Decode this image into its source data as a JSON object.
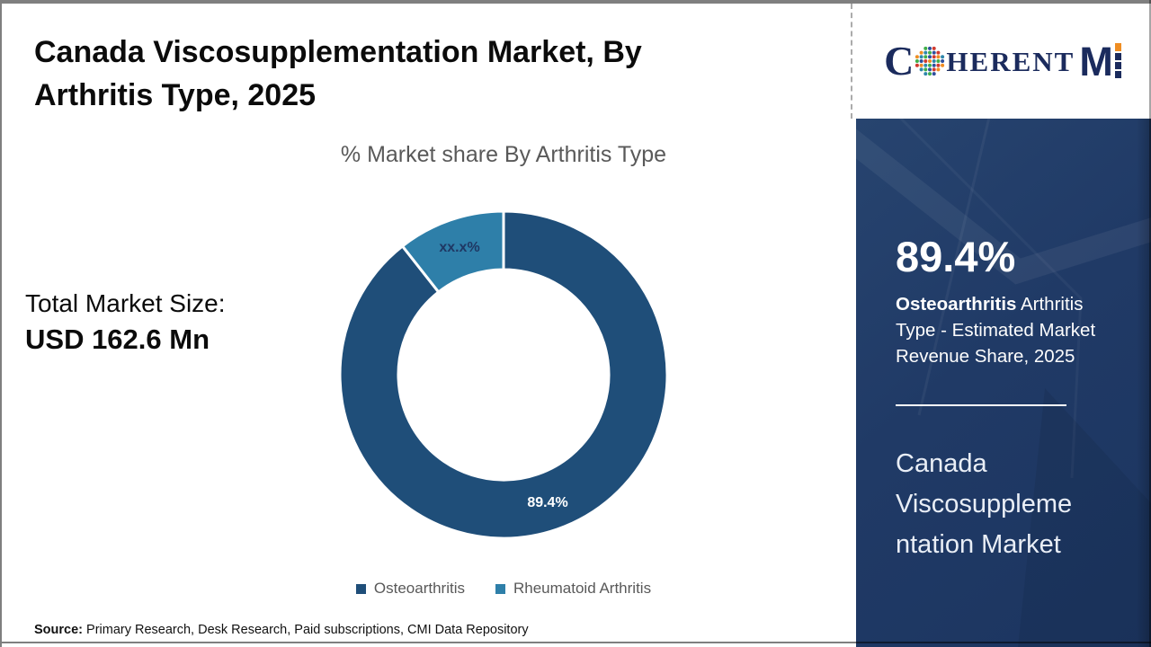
{
  "page": {
    "title": "Canada Viscosupplementation Market, By Arthritis Type, 2025",
    "total_market_label": "Total Market Size:",
    "total_market_value": "USD 162.6 Mn",
    "source_label": "Source:",
    "source_text": " Primary Research, Desk Research, Paid subscriptions, CMI Data Repository"
  },
  "logo": {
    "c": "C",
    "herent": "HERENT",
    "m": "M",
    "globe_colors": [
      "#3fae49",
      "#2d4f9e",
      "#d03a2f",
      "#ef8d22",
      "#2e86ab"
    ],
    "navy": "#1b2b5d",
    "orange": "#ef8d22"
  },
  "chart_data": {
    "type": "pie",
    "subtype": "donut",
    "title": "% Market share By Arthritis Type",
    "categories": [
      "Osteoarthritis",
      "Rheumatoid Arthritis"
    ],
    "values": [
      89.4,
      10.6
    ],
    "slice_labels": [
      "89.4%",
      "xx.x%"
    ],
    "colors": [
      "#1F4E79",
      "#2E7FA9"
    ],
    "slice_label_colors": [
      "#FFFFFF",
      "#1F3864"
    ],
    "legend_position": "bottom",
    "legend_text_color": "#595959",
    "start_angle": 0,
    "direction": "clockwise",
    "inner_radius_ratio": 0.643
  },
  "sidebar": {
    "stat_value": "89.4%",
    "stat_desc_bold": "Osteoarthritis",
    "stat_desc_rest": " Arthritis Type - Estimated Market Revenue Share, 2025",
    "heading_lines": [
      "Canada",
      "Viscosuppleme",
      "ntation Market"
    ],
    "bg_color": "#203A66"
  }
}
